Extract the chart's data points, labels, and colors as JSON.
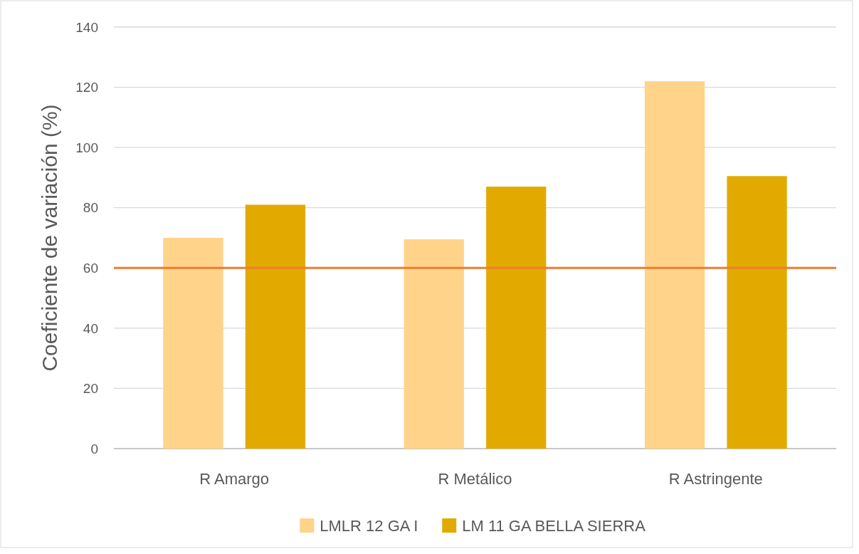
{
  "chart_data": {
    "type": "bar",
    "ylabel": "Coeficiente de variación (%)",
    "categories": [
      "R Amargo",
      "R Metálico",
      "R Astringente"
    ],
    "series": [
      {
        "name": "LMLR 12 GA I",
        "color": "#ffd38a",
        "values": [
          70,
          69.5,
          122
        ]
      },
      {
        "name": "LM 11 GA BELLA SIERRA",
        "color": "#e2aa00",
        "values": [
          81,
          87,
          90.5
        ]
      }
    ],
    "ylim": [
      0,
      140
    ],
    "yticks": [
      0,
      20,
      40,
      60,
      80,
      100,
      120,
      140
    ],
    "grid": "y",
    "legend": "bottom",
    "ref_lines": [
      {
        "axis": "y",
        "value": 60,
        "color": "#ed7d31"
      }
    ]
  }
}
